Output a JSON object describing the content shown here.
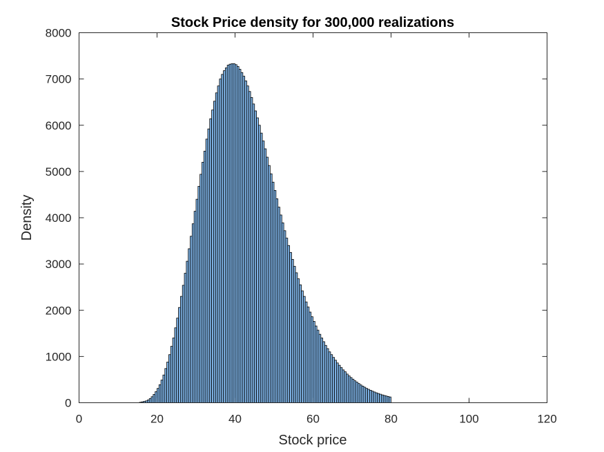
{
  "chart_data": {
    "type": "bar",
    "title": "Stock Price density for 300,000 realizations",
    "xlabel": "Stock price",
    "ylabel": "Density",
    "xlim": [
      0,
      120
    ],
    "ylim": [
      0,
      8000
    ],
    "xticks": [
      0,
      20,
      40,
      60,
      80,
      100,
      120
    ],
    "yticks": [
      0,
      1000,
      2000,
      3000,
      4000,
      5000,
      6000,
      7000,
      8000
    ],
    "grid": false,
    "bar_color": "#7EB3E6",
    "edge_color": "#000000",
    "bin_width": 0.5,
    "bins": [
      [
        15.75,
        10
      ],
      [
        16.25,
        20
      ],
      [
        16.75,
        30
      ],
      [
        17.25,
        40
      ],
      [
        17.75,
        60
      ],
      [
        18.25,
        90
      ],
      [
        18.75,
        130
      ],
      [
        19.25,
        180
      ],
      [
        19.75,
        240
      ],
      [
        20.25,
        310
      ],
      [
        20.75,
        390
      ],
      [
        21.25,
        490
      ],
      [
        21.75,
        600
      ],
      [
        22.25,
        740
      ],
      [
        22.75,
        880
      ],
      [
        23.25,
        1040
      ],
      [
        23.75,
        1220
      ],
      [
        24.25,
        1400
      ],
      [
        24.75,
        1620
      ],
      [
        25.25,
        1830
      ],
      [
        25.75,
        2060
      ],
      [
        26.25,
        2300
      ],
      [
        26.75,
        2540
      ],
      [
        27.25,
        2800
      ],
      [
        27.75,
        3060
      ],
      [
        28.25,
        3330
      ],
      [
        28.75,
        3600
      ],
      [
        29.25,
        3870
      ],
      [
        29.75,
        4140
      ],
      [
        30.25,
        4400
      ],
      [
        30.75,
        4680
      ],
      [
        31.25,
        4940
      ],
      [
        31.75,
        5200
      ],
      [
        32.25,
        5440
      ],
      [
        32.75,
        5700
      ],
      [
        33.25,
        5920
      ],
      [
        33.75,
        6140
      ],
      [
        34.25,
        6330
      ],
      [
        34.75,
        6520
      ],
      [
        35.25,
        6700
      ],
      [
        35.75,
        6850
      ],
      [
        36.25,
        7000
      ],
      [
        36.75,
        7100
      ],
      [
        37.25,
        7180
      ],
      [
        37.75,
        7240
      ],
      [
        38.25,
        7300
      ],
      [
        38.75,
        7320
      ],
      [
        39.25,
        7330
      ],
      [
        39.75,
        7330
      ],
      [
        40.25,
        7310
      ],
      [
        40.75,
        7270
      ],
      [
        41.25,
        7210
      ],
      [
        41.75,
        7140
      ],
      [
        42.25,
        7060
      ],
      [
        42.75,
        6960
      ],
      [
        43.25,
        6850
      ],
      [
        43.75,
        6730
      ],
      [
        44.25,
        6600
      ],
      [
        44.75,
        6460
      ],
      [
        45.25,
        6310
      ],
      [
        45.75,
        6160
      ],
      [
        46.25,
        6000
      ],
      [
        46.75,
        5830
      ],
      [
        47.25,
        5660
      ],
      [
        47.75,
        5490
      ],
      [
        48.25,
        5310
      ],
      [
        48.75,
        5130
      ],
      [
        49.25,
        4950
      ],
      [
        49.75,
        4770
      ],
      [
        50.25,
        4590
      ],
      [
        50.75,
        4410
      ],
      [
        51.25,
        4230
      ],
      [
        51.75,
        4060
      ],
      [
        52.25,
        3890
      ],
      [
        52.75,
        3720
      ],
      [
        53.25,
        3560
      ],
      [
        53.75,
        3400
      ],
      [
        54.25,
        3250
      ],
      [
        54.75,
        3100
      ],
      [
        55.25,
        2950
      ],
      [
        55.75,
        2810
      ],
      [
        56.25,
        2680
      ],
      [
        56.75,
        2550
      ],
      [
        57.25,
        2420
      ],
      [
        57.75,
        2300
      ],
      [
        58.25,
        2180
      ],
      [
        58.75,
        2070
      ],
      [
        59.25,
        1960
      ],
      [
        59.75,
        1860
      ],
      [
        60.25,
        1760
      ],
      [
        60.75,
        1660
      ],
      [
        61.25,
        1570
      ],
      [
        61.75,
        1480
      ],
      [
        62.25,
        1400
      ],
      [
        62.75,
        1320
      ],
      [
        63.25,
        1240
      ],
      [
        63.75,
        1170
      ],
      [
        64.25,
        1100
      ],
      [
        64.75,
        1040
      ],
      [
        65.25,
        980
      ],
      [
        65.75,
        920
      ],
      [
        66.25,
        860
      ],
      [
        66.75,
        810
      ],
      [
        67.25,
        760
      ],
      [
        67.75,
        710
      ],
      [
        68.25,
        670
      ],
      [
        68.75,
        620
      ],
      [
        69.25,
        580
      ],
      [
        69.75,
        545
      ],
      [
        70.25,
        510
      ],
      [
        70.75,
        475
      ],
      [
        71.25,
        445
      ],
      [
        71.75,
        415
      ],
      [
        72.25,
        385
      ],
      [
        72.75,
        360
      ],
      [
        73.25,
        335
      ],
      [
        73.75,
        310
      ],
      [
        74.25,
        290
      ],
      [
        74.75,
        270
      ],
      [
        75.25,
        250
      ],
      [
        75.75,
        232
      ],
      [
        76.25,
        215
      ],
      [
        76.75,
        200
      ],
      [
        77.25,
        185
      ],
      [
        77.75,
        170
      ],
      [
        78.25,
        158
      ],
      [
        78.75,
        146
      ],
      [
        79.25,
        135
      ],
      [
        79.75,
        125
      ]
    ]
  }
}
